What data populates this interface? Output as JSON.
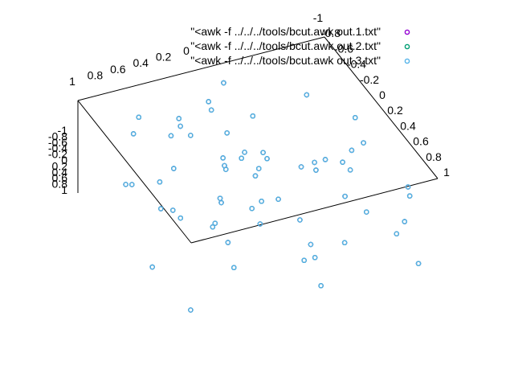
{
  "chart_data": {
    "type": "scatter",
    "projection": "3d",
    "title": "",
    "xlabel": "",
    "ylabel": "",
    "zlabel": "",
    "grid": false,
    "legend_position": "top-right",
    "xlim": [
      0,
      1
    ],
    "ylim": [
      -1,
      1
    ],
    "zlim": [
      -1,
      1
    ],
    "x_ticks": [
      "1",
      "0.8",
      "0.6",
      "0.4",
      "0.2",
      "0"
    ],
    "y_ticks": [
      "-1",
      "-0.8",
      "-0.6",
      "-0.4",
      "-0.2",
      "0",
      "0.2",
      "0.4",
      "0.6",
      "0.8",
      "1"
    ],
    "z_ticks": [
      "-1",
      "-0.8",
      "-0.6",
      "-0.4",
      "-0.2",
      "0",
      "0.2",
      "0.4",
      "0.6",
      "0.8",
      "1"
    ],
    "series": [
      {
        "name": "\"<awk -f ../../../tools/bcut.awk out.1.txt\"",
        "color": "#9400d3",
        "marker": "circle-open"
      },
      {
        "name": "\"<awk -f ../../../tools/bcut.awk out.2.txt\"",
        "color": "#009e73",
        "marker": "circle-open"
      },
      {
        "name": "\"<awk -f ../../../tools/bcut.awk out.3.txt\"",
        "color": "#56b4e9",
        "marker": "circle-open"
      }
    ]
  }
}
